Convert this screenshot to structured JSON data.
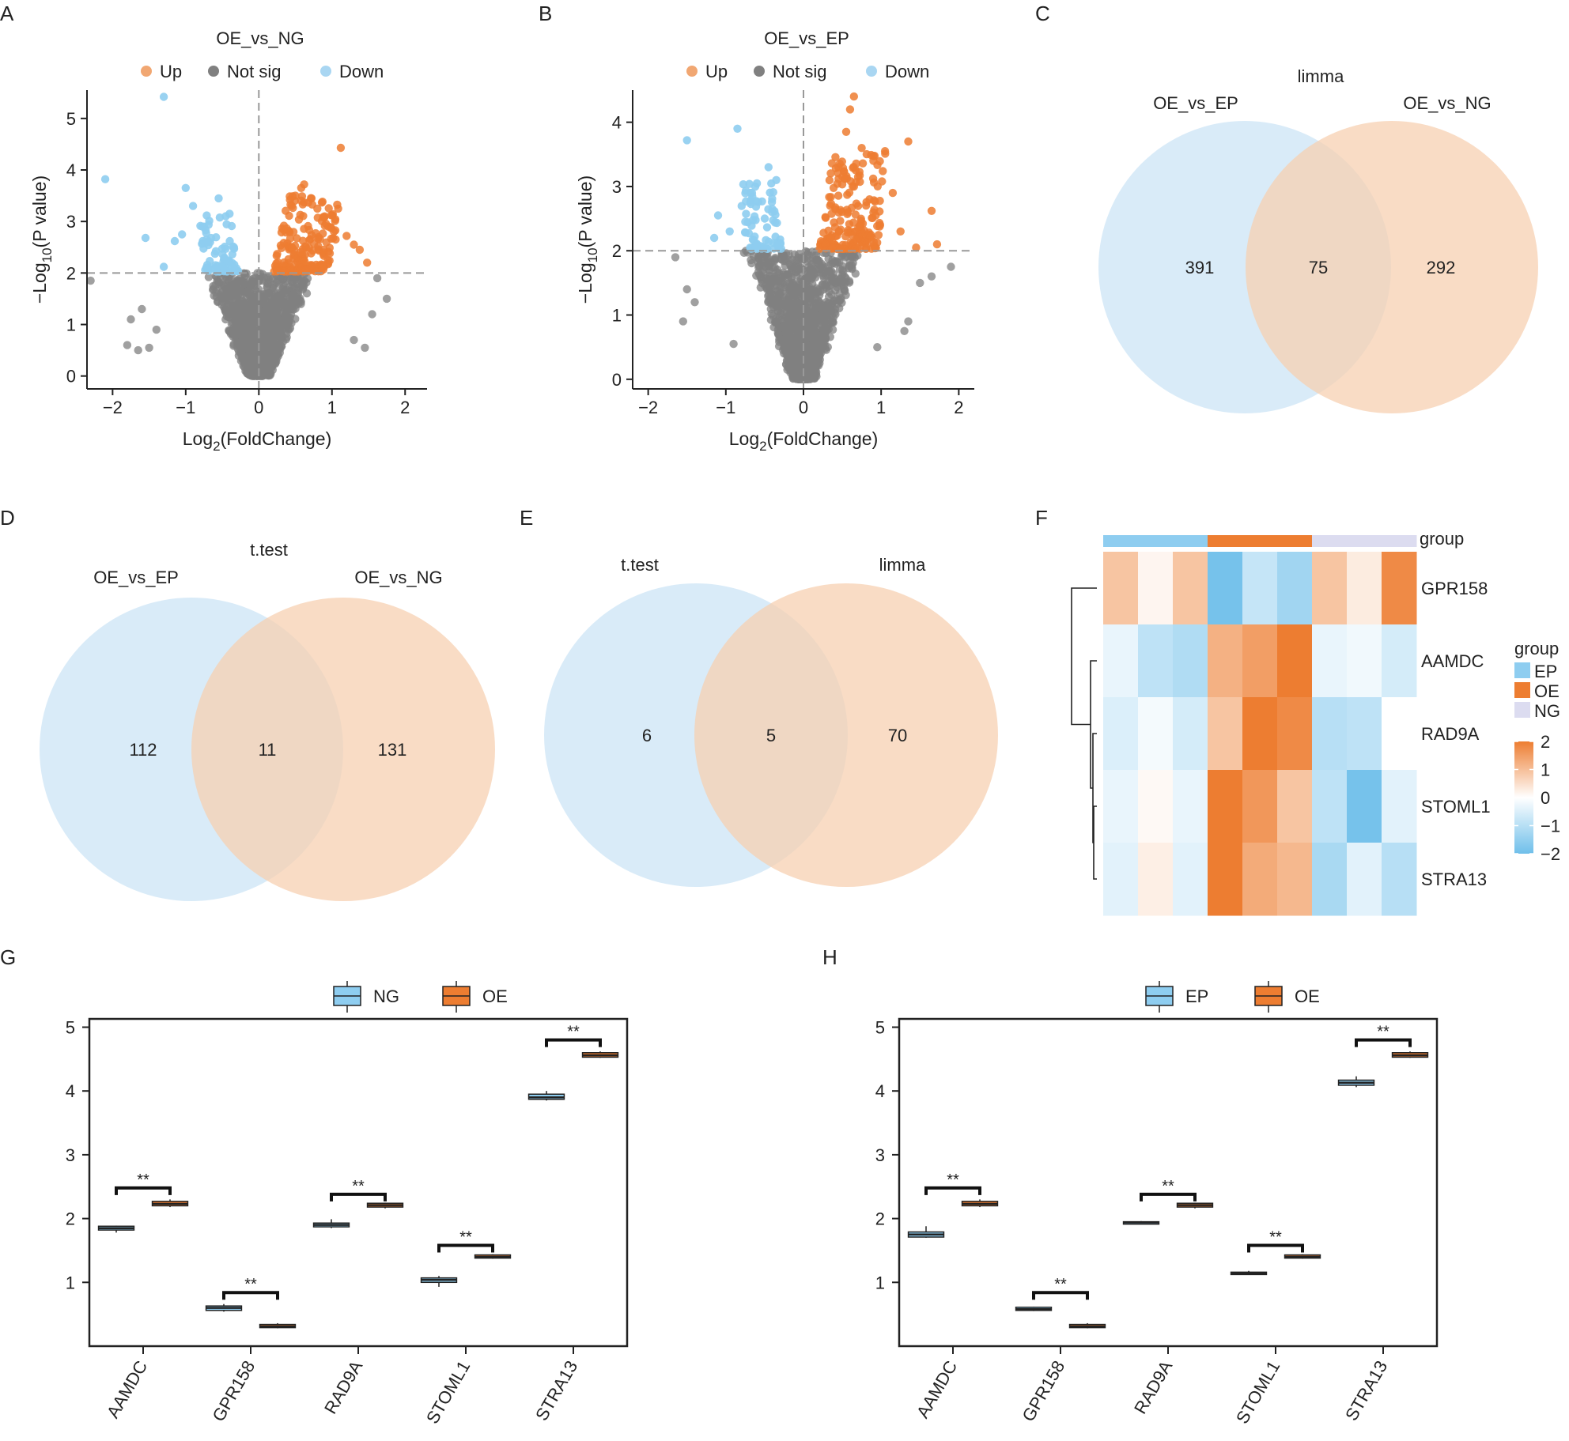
{
  "colors": {
    "up": "#ed7d31",
    "up_light": "#f1a772",
    "down": "#8ecdf0",
    "down_light": "#a9d6f2",
    "not_sig": "#808080",
    "ep": "#8ecdf0",
    "oe": "#ed7d31",
    "ng": "#dcdcf0",
    "venn_left": "#cfe6f6",
    "venn_right": "#f6cfae"
  },
  "panel_labels": [
    "A",
    "B",
    "C",
    "D",
    "E",
    "F",
    "G",
    "H"
  ],
  "chart_data": [
    {
      "id": "A",
      "type": "scatter",
      "subtype": "volcano",
      "title": "OE_vs_NG",
      "legend": [
        {
          "label": "Up",
          "color": "#f1a772"
        },
        {
          "label": "Not sig",
          "color": "#808080"
        },
        {
          "label": "Down",
          "color": "#a9d6f2"
        }
      ],
      "xlabel_main": "Log",
      "xlabel_sub": "2",
      "xlabel_tail": "(FoldChange)",
      "ylabel_main": "−Log",
      "ylabel_sub": "10",
      "ylabel_tail": "(P value)",
      "xlim": [
        -2.35,
        2.3
      ],
      "ylim": [
        -0.25,
        5.55
      ],
      "xticks": [
        -2,
        -1,
        0,
        1,
        2
      ],
      "xtick_labels": [
        "−2",
        "−1",
        "0",
        "1",
        "2"
      ],
      "yticks": [
        0,
        1,
        2,
        3,
        4,
        5
      ],
      "ytick_labels": [
        "0",
        "1",
        "2",
        "3",
        "4",
        "5"
      ],
      "fc_threshold": 0,
      "p_threshold": 2,
      "up_outliers": [
        [
          1.12,
          4.43
        ],
        [
          0.62,
          3.72
        ],
        [
          0.58,
          3.65
        ],
        [
          0.72,
          3.45
        ],
        [
          0.9,
          3.1
        ],
        [
          1.2,
          2.72
        ],
        [
          1.38,
          2.45
        ],
        [
          1.48,
          2.2
        ],
        [
          1.3,
          2.55
        ],
        [
          0.95,
          2.9
        ],
        [
          1.05,
          2.65
        ],
        [
          0.8,
          3.25
        ],
        [
          0.5,
          3.5
        ],
        [
          0.45,
          3.3
        ]
      ],
      "down_outliers": [
        [
          -2.1,
          3.82
        ],
        [
          -1.3,
          5.42
        ],
        [
          -1.0,
          3.65
        ],
        [
          -1.55,
          2.68
        ],
        [
          -1.15,
          2.62
        ],
        [
          -1.3,
          2.12
        ],
        [
          -0.55,
          3.45
        ],
        [
          -0.4,
          3.15
        ],
        [
          -0.9,
          3.3
        ],
        [
          -0.75,
          2.9
        ],
        [
          -1.05,
          2.75
        ]
      ],
      "ns_outliers": [
        [
          -2.3,
          1.85
        ],
        [
          -1.75,
          1.1
        ],
        [
          -1.65,
          0.5
        ],
        [
          -1.5,
          0.55
        ],
        [
          -1.8,
          0.6
        ],
        [
          -1.6,
          1.3
        ],
        [
          1.62,
          1.9
        ],
        [
          1.75,
          1.5
        ],
        [
          1.45,
          0.55
        ],
        [
          1.55,
          1.2
        ],
        [
          1.3,
          0.7
        ],
        [
          -1.4,
          0.9
        ]
      ],
      "n_up": 190,
      "n_down": 75,
      "n_ns": 1500
    },
    {
      "id": "B",
      "type": "scatter",
      "subtype": "volcano",
      "title": "OE_vs_EP",
      "legend": [
        {
          "label": "Up",
          "color": "#f1a772"
        },
        {
          "label": "Not sig",
          "color": "#808080"
        },
        {
          "label": "Down",
          "color": "#a9d6f2"
        }
      ],
      "xlabel_main": "Log",
      "xlabel_sub": "2",
      "xlabel_tail": "(FoldChange)",
      "ylabel_main": "−Log",
      "ylabel_sub": "10",
      "ylabel_tail": "(P value)",
      "xlim": [
        -2.2,
        2.2
      ],
      "ylim": [
        -0.15,
        4.5
      ],
      "xticks": [
        -2,
        -1,
        0,
        1,
        2
      ],
      "xtick_labels": [
        "−2",
        "−1",
        "0",
        "1",
        "2"
      ],
      "yticks": [
        0,
        1,
        2,
        3,
        4
      ],
      "ytick_labels": [
        "0",
        "1",
        "2",
        "3",
        "4"
      ],
      "fc_threshold": 0,
      "p_threshold": 2,
      "up_outliers": [
        [
          0.65,
          4.4
        ],
        [
          0.6,
          4.2
        ],
        [
          0.55,
          3.85
        ],
        [
          1.35,
          3.7
        ],
        [
          1.05,
          3.55
        ],
        [
          1.65,
          2.62
        ],
        [
          1.72,
          2.1
        ],
        [
          1.45,
          2.05
        ],
        [
          1.15,
          2.9
        ],
        [
          0.9,
          3.4
        ],
        [
          0.75,
          3.6
        ],
        [
          1.25,
          2.3
        ],
        [
          0.45,
          3.3
        ],
        [
          0.85,
          2.8
        ]
      ],
      "down_outliers": [
        [
          -1.5,
          3.72
        ],
        [
          -0.85,
          3.9
        ],
        [
          -0.45,
          3.3
        ],
        [
          -1.1,
          2.55
        ],
        [
          -1.15,
          2.2
        ],
        [
          -0.95,
          2.3
        ],
        [
          -0.6,
          3.05
        ],
        [
          -0.75,
          2.45
        ],
        [
          -0.35,
          3.1
        ]
      ],
      "ns_outliers": [
        [
          -1.65,
          1.9
        ],
        [
          -1.5,
          1.4
        ],
        [
          -1.4,
          1.2
        ],
        [
          -1.55,
          0.9
        ],
        [
          1.5,
          1.5
        ],
        [
          1.65,
          1.6
        ],
        [
          1.3,
          0.75
        ],
        [
          1.35,
          0.9
        ],
        [
          -0.9,
          0.55
        ],
        [
          0.95,
          0.5
        ],
        [
          1.9,
          1.75
        ]
      ],
      "n_up": 200,
      "n_down": 75,
      "n_ns": 1500
    },
    {
      "id": "C",
      "type": "venn",
      "title": "limma",
      "sets": [
        "OE_vs_EP",
        "OE_vs_NG"
      ],
      "left_only": "391",
      "intersection": "75",
      "right_only": "292"
    },
    {
      "id": "D",
      "type": "venn",
      "title": "t.test",
      "sets": [
        "OE_vs_EP",
        "OE_vs_NG"
      ],
      "left_only": "112",
      "intersection": "11",
      "right_only": "131"
    },
    {
      "id": "E",
      "type": "venn",
      "title": "",
      "sets": [
        "t.test",
        "limma"
      ],
      "left_only": "6",
      "intersection": "5",
      "right_only": "70"
    },
    {
      "id": "F",
      "type": "heatmap",
      "group_label": "group",
      "column_groups": [
        "EP",
        "EP",
        "EP",
        "OE",
        "OE",
        "OE",
        "NG",
        "NG",
        "NG"
      ],
      "rows": [
        "GPR158",
        "AAMDC",
        "RAD9A",
        "STOML1",
        "STRA13"
      ],
      "values": [
        [
          0.9,
          0.15,
          0.9,
          -1.9,
          -0.8,
          -1.3,
          0.9,
          0.3,
          1.8
        ],
        [
          -0.3,
          -0.9,
          -1.1,
          1.2,
          1.5,
          2.1,
          -0.3,
          -0.2,
          -0.6
        ],
        [
          -0.5,
          -0.15,
          -0.6,
          0.9,
          2.0,
          1.8,
          -1.0,
          -0.9,
          0.0
        ],
        [
          -0.3,
          0.1,
          -0.3,
          2.0,
          1.6,
          0.9,
          -0.9,
          -1.9,
          -0.4
        ],
        [
          -0.4,
          0.25,
          -0.4,
          2.0,
          1.3,
          1.1,
          -1.2,
          -0.4,
          -1.0
        ]
      ],
      "legend_title": "group",
      "legend_groups": [
        {
          "label": "EP",
          "color": "#8ecdf0"
        },
        {
          "label": "OE",
          "color": "#ed7d31"
        },
        {
          "label": "NG",
          "color": "#dcdcf0"
        }
      ],
      "scale_ticks": [
        2,
        1,
        0,
        -1,
        -2
      ],
      "scale_labels": [
        "2",
        "1",
        "0",
        "−1",
        "−2"
      ]
    },
    {
      "id": "G",
      "type": "box",
      "legend": [
        {
          "label": "NG",
          "color": "#8ecdf0"
        },
        {
          "label": "OE",
          "color": "#ed7d31"
        }
      ],
      "categories": [
        "AAMDC",
        "GPR158",
        "RAD9A",
        "STOML1",
        "STRA13"
      ],
      "ylim": [
        0.0,
        5.13
      ],
      "yticks": [
        1,
        2,
        3,
        4,
        5
      ],
      "ytick_labels": [
        "1",
        "2",
        "3",
        "4",
        "5"
      ],
      "series": [
        {
          "name": "NG",
          "median": [
            1.85,
            0.6,
            1.9,
            1.04,
            3.9
          ],
          "q1": [
            1.82,
            0.56,
            1.87,
            1.0,
            3.87
          ],
          "q3": [
            1.88,
            0.63,
            1.93,
            1.07,
            3.95
          ],
          "min": [
            1.78,
            0.54,
            1.85,
            0.93,
            3.85
          ],
          "max": [
            1.89,
            0.66,
            1.99,
            1.1,
            4.0
          ]
        },
        {
          "name": "OE",
          "median": [
            2.23,
            0.31,
            2.21,
            1.4,
            4.56
          ],
          "q1": [
            2.2,
            0.29,
            2.18,
            1.38,
            4.53
          ],
          "q3": [
            2.27,
            0.34,
            2.24,
            1.43,
            4.6
          ],
          "min": [
            2.18,
            0.28,
            2.16,
            1.37,
            4.52
          ],
          "max": [
            2.3,
            0.36,
            2.25,
            1.44,
            4.62
          ]
        }
      ],
      "significance": [
        "**",
        "**",
        "**",
        "**",
        "**"
      ],
      "sig_y": [
        2.48,
        0.84,
        2.38,
        1.58,
        4.8
      ]
    },
    {
      "id": "H",
      "type": "box",
      "legend": [
        {
          "label": "EP",
          "color": "#8ecdf0"
        },
        {
          "label": "OE",
          "color": "#ed7d31"
        }
      ],
      "categories": [
        "AAMDC",
        "GPR158",
        "RAD9A",
        "STOML1",
        "STRA13"
      ],
      "ylim": [
        0.0,
        5.13
      ],
      "yticks": [
        1,
        2,
        3,
        4,
        5
      ],
      "ytick_labels": [
        "1",
        "2",
        "3",
        "4",
        "5"
      ],
      "series": [
        {
          "name": "EP",
          "median": [
            1.75,
            0.58,
            1.94,
            1.14,
            4.13
          ],
          "q1": [
            1.71,
            0.56,
            1.93,
            1.13,
            4.09
          ],
          "q3": [
            1.79,
            0.61,
            1.95,
            1.16,
            4.17
          ],
          "min": [
            1.7,
            0.55,
            1.92,
            1.12,
            4.06
          ],
          "max": [
            1.88,
            0.62,
            1.96,
            1.18,
            4.23
          ]
        },
        {
          "name": "OE",
          "median": [
            2.23,
            0.31,
            2.21,
            1.4,
            4.56
          ],
          "q1": [
            2.2,
            0.29,
            2.18,
            1.38,
            4.53
          ],
          "q3": [
            2.27,
            0.34,
            2.24,
            1.43,
            4.6
          ],
          "min": [
            2.18,
            0.28,
            2.16,
            1.37,
            4.52
          ],
          "max": [
            2.3,
            0.36,
            2.25,
            1.44,
            4.62
          ]
        }
      ],
      "significance": [
        "**",
        "**",
        "**",
        "**",
        "**"
      ],
      "sig_y": [
        2.48,
        0.84,
        2.38,
        1.58,
        4.8
      ]
    }
  ]
}
